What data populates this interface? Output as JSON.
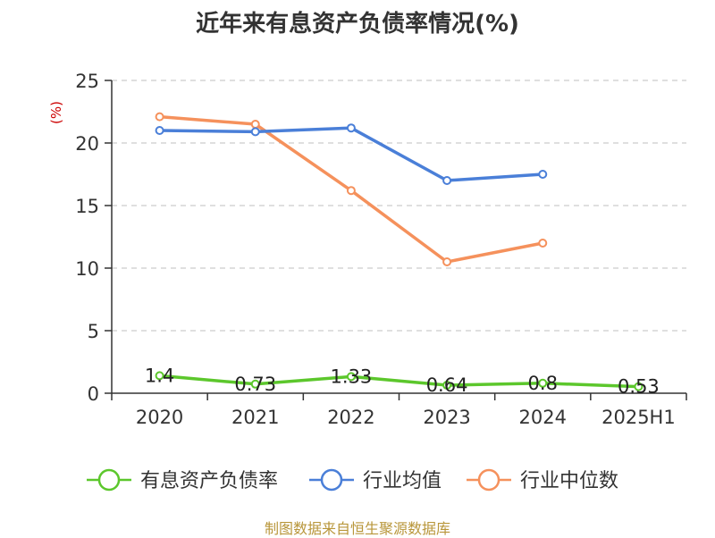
{
  "chart_data": {
    "type": "line",
    "title": "近年来有息资产负债率情况(%)",
    "ylabel": "(%)",
    "categories": [
      "2020",
      "2021",
      "2022",
      "2023",
      "2024",
      "2025H1"
    ],
    "ylim": [
      0,
      25
    ],
    "yticks": [
      0,
      5,
      10,
      15,
      20,
      25
    ],
    "grid": true,
    "legend_position": "bottom",
    "series": [
      {
        "name": "有息资产负债率",
        "color": "#5cc72c",
        "values": [
          1.4,
          0.73,
          1.33,
          0.64,
          0.8,
          0.53
        ],
        "labels": [
          "1.4",
          "0.73",
          "1.33",
          "0.64",
          "0.8",
          "0.53"
        ]
      },
      {
        "name": "行业均值",
        "color": "#4a7fd8",
        "values": [
          21.0,
          20.9,
          21.2,
          17.0,
          17.5,
          null
        ]
      },
      {
        "name": "行业中位数",
        "color": "#f5915c",
        "values": [
          22.1,
          21.5,
          16.2,
          10.5,
          12.0,
          null
        ]
      }
    ]
  },
  "source_text": "制图数据来自恒生聚源数据库"
}
